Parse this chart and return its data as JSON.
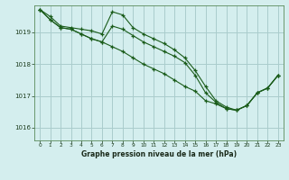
{
  "title": "Graphe pression niveau de la mer (hPa)",
  "background_color": "#d4eeee",
  "grid_color": "#aacccc",
  "line_color": "#1a5c1a",
  "xlim": [
    -0.5,
    23.5
  ],
  "ylim": [
    1015.6,
    1019.85
  ],
  "yticks": [
    1016,
    1017,
    1018,
    1019
  ],
  "xticks": [
    0,
    1,
    2,
    3,
    4,
    5,
    6,
    7,
    8,
    9,
    10,
    11,
    12,
    13,
    14,
    15,
    16,
    17,
    18,
    19,
    20,
    21,
    22,
    23
  ],
  "series": {
    "line1_max": [
      1019.72,
      1019.5,
      1019.2,
      1019.15,
      1019.1,
      1019.05,
      1018.95,
      1019.65,
      1019.55,
      1019.15,
      1018.95,
      1018.8,
      1018.65,
      1018.45,
      1018.2,
      1017.8,
      1017.3,
      1016.85,
      1016.65,
      1016.55,
      1016.7,
      1017.1,
      1017.25,
      1017.65
    ],
    "line2_avg": [
      1019.72,
      1019.4,
      1019.15,
      1019.1,
      1018.95,
      1018.8,
      1018.7,
      1019.2,
      1019.1,
      1018.9,
      1018.7,
      1018.55,
      1018.4,
      1018.25,
      1018.05,
      1017.65,
      1017.1,
      1016.8,
      1016.6,
      1016.55,
      1016.7,
      1017.1,
      1017.25,
      1017.65
    ],
    "line3_min": [
      1019.72,
      1019.4,
      1019.15,
      1019.1,
      1018.95,
      1018.8,
      1018.7,
      1018.55,
      1018.4,
      1018.2,
      1018.0,
      1017.85,
      1017.7,
      1017.5,
      1017.3,
      1017.15,
      1016.85,
      1016.75,
      1016.6,
      1016.55,
      1016.7,
      1017.1,
      1017.25,
      1017.65
    ]
  }
}
